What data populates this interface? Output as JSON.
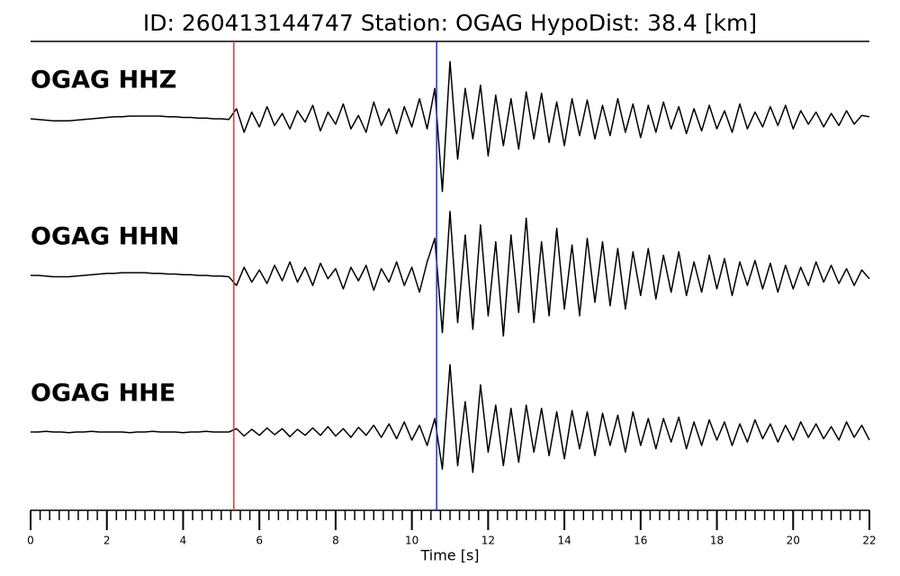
{
  "chart_data": {
    "type": "line",
    "title": "ID: 260413144747   Station: OGAG   HypoDist:    38.4 [km]",
    "xlabel": "Time [s]",
    "xlim": [
      0,
      22
    ],
    "xticks": [
      0,
      2,
      4,
      6,
      8,
      10,
      12,
      14,
      16,
      18,
      20,
      22
    ],
    "xminor_step": 0.25,
    "ylim": [
      -1.2,
      1.2
    ],
    "label_color": "#4a9a0a",
    "markers": [
      {
        "color": "#e8342c",
        "x": 5.33
      },
      {
        "color": "#1f2fd0",
        "x": 10.65
      }
    ],
    "x": [
      0,
      0.2,
      0.4,
      0.6,
      0.8,
      1,
      1.2,
      1.4,
      1.6,
      1.8,
      2,
      2.2,
      2.4,
      2.6,
      2.8,
      3,
      3.2,
      3.4,
      3.6,
      3.8,
      4,
      4.2,
      4.4,
      4.6,
      4.8,
      5,
      5.2,
      5.4,
      5.6,
      5.8,
      6,
      6.2,
      6.4,
      6.6,
      6.8,
      7,
      7.2,
      7.4,
      7.6,
      7.8,
      8,
      8.2,
      8.4,
      8.6,
      8.8,
      9,
      9.2,
      9.4,
      9.6,
      9.8,
      10,
      10.2,
      10.4,
      10.6,
      10.8,
      11,
      11.2,
      11.4,
      11.6,
      11.8,
      12,
      12.2,
      12.4,
      12.6,
      12.8,
      13,
      13.2,
      13.4,
      13.6,
      13.8,
      14,
      14.2,
      14.4,
      14.6,
      14.8,
      15,
      15.2,
      15.4,
      15.6,
      15.8,
      16,
      16.2,
      16.4,
      16.6,
      16.8,
      17,
      17.2,
      17.4,
      17.6,
      17.8,
      18,
      18.2,
      18.4,
      18.6,
      18.8,
      19,
      19.2,
      19.4,
      19.6,
      19.8,
      20,
      20.2,
      20.4,
      20.6,
      20.8,
      21,
      21.2,
      21.4,
      21.6,
      21.8,
      22
    ],
    "series": [
      {
        "name": "OGAG HHZ",
        "color": "#000000",
        "values": [
          0,
          -0.01,
          -0.02,
          -0.03,
          -0.03,
          -0.03,
          -0.02,
          -0.01,
          0,
          0.01,
          0.02,
          0.03,
          0.03,
          0.04,
          0.04,
          0.04,
          0.04,
          0.04,
          0.03,
          0.03,
          0.02,
          0.02,
          0.01,
          0.01,
          0,
          0,
          -0.01,
          0.15,
          -0.2,
          0.1,
          -0.12,
          0.18,
          -0.1,
          0.08,
          -0.15,
          0.12,
          -0.05,
          0.2,
          -0.18,
          0.1,
          -0.08,
          0.22,
          -0.15,
          0.05,
          -0.2,
          0.25,
          -0.1,
          0.15,
          -0.22,
          0.18,
          -0.12,
          0.3,
          -0.15,
          0.45,
          -1.08,
          0.85,
          -0.6,
          0.45,
          -0.3,
          0.5,
          -0.55,
          0.35,
          -0.4,
          0.3,
          -0.45,
          0.4,
          -0.3,
          0.38,
          -0.35,
          0.25,
          -0.4,
          0.3,
          -0.25,
          0.28,
          -0.3,
          0.2,
          -0.25,
          0.3,
          -0.2,
          0.22,
          -0.28,
          0.2,
          -0.2,
          0.25,
          -0.15,
          0.18,
          -0.22,
          0.15,
          -0.18,
          0.2,
          -0.15,
          0.12,
          -0.2,
          0.22,
          -0.15,
          0.1,
          -0.12,
          0.18,
          -0.1,
          0.2,
          -0.15,
          0.12,
          -0.08,
          0.1,
          -0.12,
          0.08,
          -0.1,
          0.12,
          -0.08,
          0.05,
          0.03
        ]
      },
      {
        "name": "OGAG HHN",
        "color": "#000000",
        "values": [
          0,
          0,
          -0.01,
          -0.02,
          -0.02,
          -0.02,
          -0.01,
          0,
          0.01,
          0.02,
          0.03,
          0.03,
          0.04,
          0.04,
          0.04,
          0.04,
          0.03,
          0.03,
          0.02,
          0.02,
          0.01,
          0.01,
          0,
          0,
          -0.01,
          -0.01,
          -0.02,
          -0.15,
          0.12,
          -0.1,
          0.08,
          -0.12,
          0.15,
          -0.08,
          0.2,
          -0.1,
          0.12,
          -0.15,
          0.18,
          -0.05,
          0.1,
          -0.2,
          0.12,
          -0.08,
          0.15,
          -0.22,
          0.1,
          -0.1,
          0.2,
          -0.15,
          0.12,
          -0.25,
          0.2,
          0.55,
          -0.85,
          0.95,
          -0.7,
          0.6,
          -0.8,
          0.75,
          -0.6,
          0.5,
          -0.9,
          0.6,
          -0.55,
          0.85,
          -0.7,
          0.5,
          -0.6,
          0.7,
          -0.5,
          0.45,
          -0.6,
          0.55,
          -0.4,
          0.5,
          -0.45,
          0.4,
          -0.5,
          0.35,
          -0.3,
          0.4,
          -0.35,
          0.3,
          -0.25,
          0.35,
          -0.3,
          0.2,
          -0.25,
          0.3,
          -0.2,
          0.25,
          -0.3,
          0.2,
          -0.15,
          0.22,
          -0.2,
          0.18,
          -0.25,
          0.15,
          -0.2,
          0.12,
          -0.15,
          0.2,
          -0.1,
          0.15,
          -0.12,
          0.1,
          -0.15,
          0.08,
          -0.05
        ]
      },
      {
        "name": "OGAG HHE",
        "color": "#000000",
        "values": [
          0,
          0,
          0.01,
          0,
          0,
          -0.01,
          0,
          0,
          0.01,
          0,
          0,
          0,
          0,
          -0.01,
          0,
          0,
          0.01,
          0,
          0,
          0,
          -0.01,
          0,
          0,
          0.01,
          0,
          0,
          0,
          0.05,
          -0.06,
          0.04,
          -0.05,
          0.06,
          -0.04,
          0.05,
          -0.07,
          0.04,
          -0.05,
          0.06,
          -0.05,
          0.08,
          -0.06,
          0.05,
          -0.08,
          0.07,
          -0.05,
          0.1,
          -0.08,
          0.12,
          -0.1,
          0.15,
          -0.12,
          0.1,
          -0.2,
          0.2,
          -0.55,
          1.0,
          -0.5,
          0.45,
          -0.6,
          0.7,
          -0.3,
          0.4,
          -0.5,
          0.35,
          -0.45,
          0.4,
          -0.3,
          0.35,
          -0.35,
          0.3,
          -0.4,
          0.32,
          -0.25,
          0.3,
          -0.35,
          0.28,
          -0.2,
          0.25,
          -0.3,
          0.3,
          -0.2,
          0.2,
          -0.25,
          0.2,
          -0.15,
          0.22,
          -0.25,
          0.15,
          -0.2,
          0.18,
          -0.12,
          0.15,
          -0.2,
          0.12,
          -0.15,
          0.18,
          -0.1,
          0.12,
          -0.15,
          0.1,
          -0.12,
          0.15,
          -0.08,
          0.12,
          -0.1,
          0.08,
          -0.12,
          0.15,
          -0.08,
          0.1,
          -0.12
        ]
      }
    ]
  }
}
